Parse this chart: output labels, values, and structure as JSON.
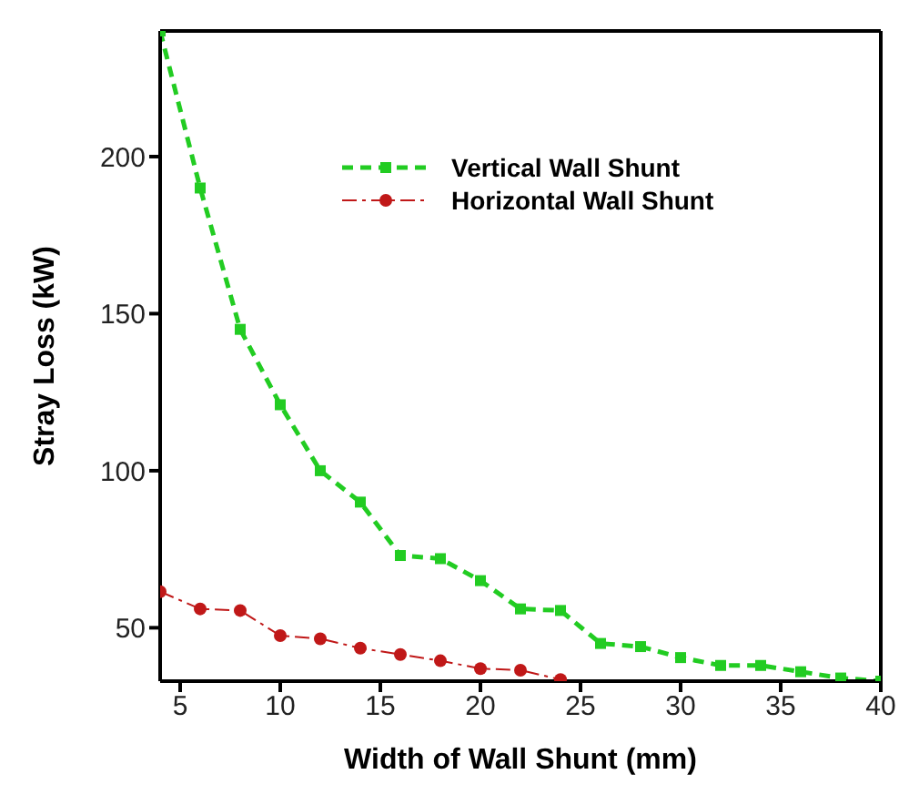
{
  "chart_data": {
    "type": "line",
    "xlabel": "Width of Wall Shunt (mm)",
    "ylabel": "Stray Loss (kW)",
    "xlim": [
      4,
      40
    ],
    "xticks": [
      5,
      10,
      15,
      20,
      25,
      30,
      35,
      40
    ],
    "ylim": [
      33,
      240
    ],
    "yticks": [
      50,
      100,
      150,
      200
    ],
    "grid": false,
    "legend": "top",
    "series": [
      {
        "name": "Vertical Wall Shunt",
        "color": "#22cc22",
        "marker": "square",
        "line_style": "dashed",
        "x": [
          4,
          6,
          8,
          10,
          12,
          14,
          16,
          18,
          20,
          22,
          24,
          26,
          28,
          30,
          32,
          34,
          36,
          38,
          40
        ],
        "values": [
          240,
          190,
          145,
          121,
          100,
          90,
          73,
          72,
          65,
          56,
          55.5,
          45,
          44,
          40.5,
          38,
          38,
          36,
          34,
          33
        ]
      },
      {
        "name": "Horizontal Wall Shunt",
        "color": "#c01818",
        "marker": "circle",
        "line_style": "dashdot",
        "x": [
          4,
          6,
          8,
          10,
          12,
          14,
          16,
          18,
          20,
          22,
          24
        ],
        "values": [
          61.5,
          56,
          55.5,
          47.5,
          46.5,
          43.5,
          41.5,
          39.5,
          37,
          36.5,
          33.5
        ]
      }
    ]
  }
}
